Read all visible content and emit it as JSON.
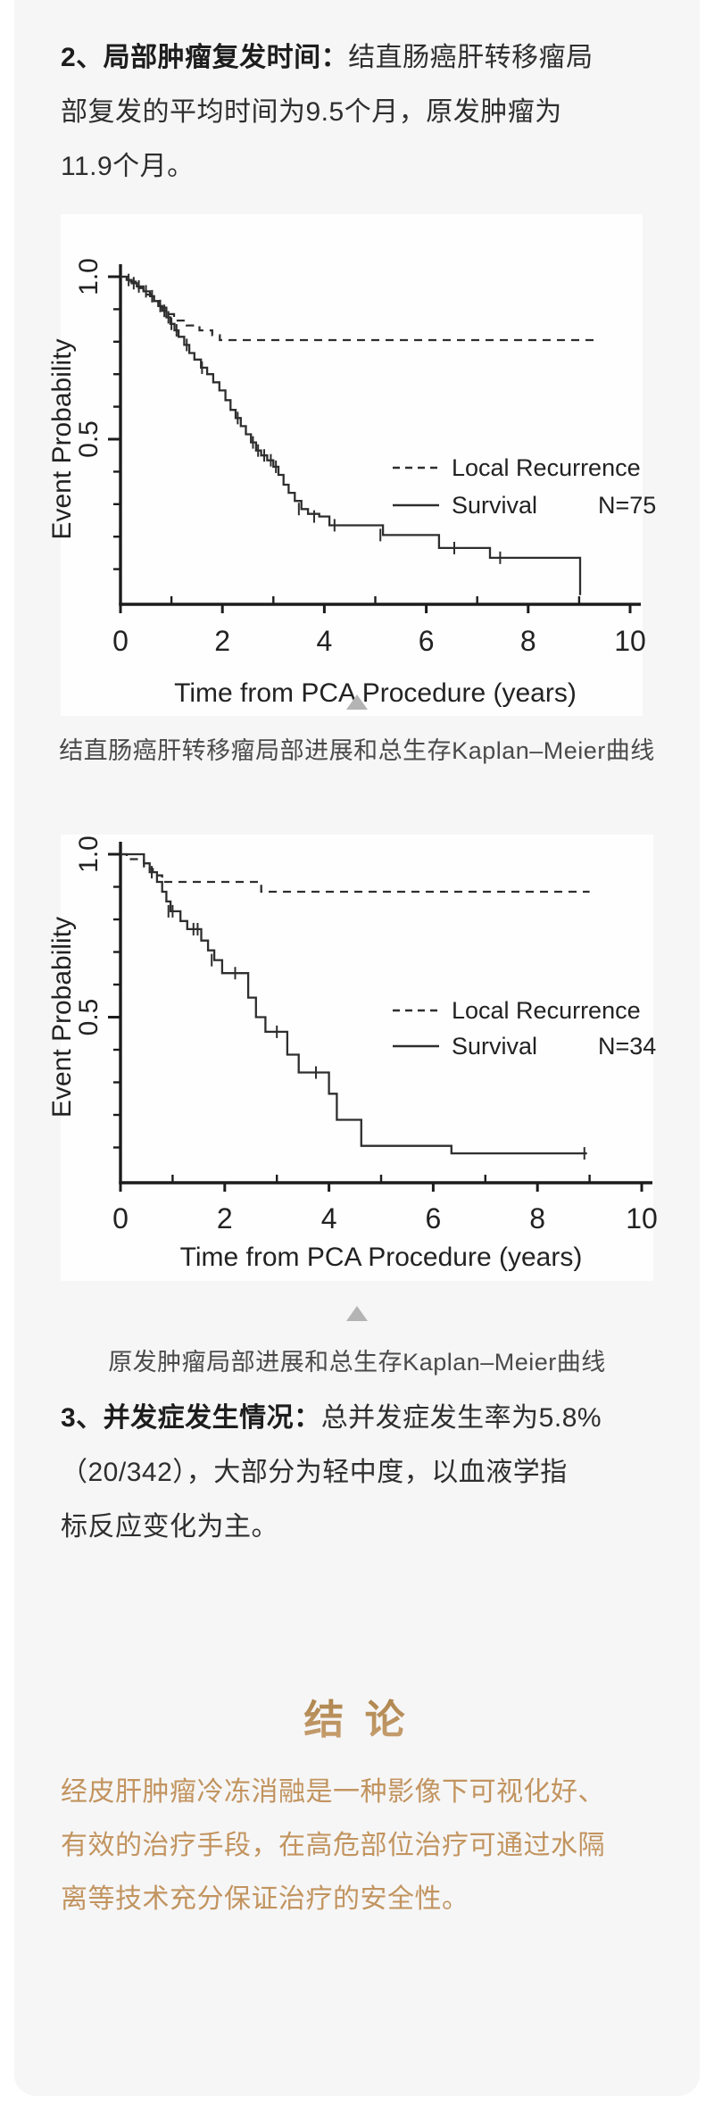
{
  "paras": {
    "p2": {
      "lines": [
        [
          {
            "t": "2、局部肿瘤复发时间：",
            "b": 1
          },
          {
            "t": "结直肠癌肝转移瘤局",
            "b": 0
          }
        ],
        [
          {
            "t": "部复发的平均时间为9.5个月，原发肿瘤为",
            "b": 0
          }
        ],
        [
          {
            "t": "11.9个月。",
            "b": 0
          }
        ]
      ]
    },
    "p3": {
      "lines": [
        [
          {
            "t": "3、并发症发生情况：",
            "b": 1
          },
          {
            "t": "总并发症发生率为5.8%",
            "b": 0
          }
        ],
        [
          {
            "t": "（20/342），大部分为轻中度，以血液学指",
            "b": 0
          }
        ],
        [
          {
            "t": "标反应变化为主。",
            "b": 0
          }
        ]
      ]
    }
  },
  "figures": [
    {
      "caption": "结直肠癌肝转移瘤局部进展和总生存Kaplan–Meier曲线"
    },
    {
      "caption": "原发肿瘤局部进展和总生存Kaplan–Meier曲线"
    }
  ],
  "conclusion": {
    "title": "结 论",
    "lines": [
      "经皮肝肿瘤冷冻消融是一种影像下可视化好、",
      "有效的治疗手段，在高危部位治疗可通过水隔",
      "离等技术充分保证治疗的安全性。"
    ],
    "accent_color": "#b08a52",
    "body_color": "#c2945f"
  },
  "chart_data": [
    {
      "type": "line",
      "subtype": "kaplan-meier-step",
      "xlabel": "Time from PCA Procedure (years)",
      "ylabel": "Event Probability",
      "xlim": [
        0,
        10
      ],
      "ylim": [
        0,
        1.0
      ],
      "x_ticks_major": [
        0,
        2,
        4,
        6,
        8,
        10
      ],
      "x_ticks_minor": [
        1,
        3,
        5,
        7,
        9
      ],
      "y_ticks_labeled": [
        {
          "v": 1.0,
          "label": "1.0"
        },
        {
          "v": 0.5,
          "label": "0.5"
        }
      ],
      "y_ticks_minor": [
        0.9,
        0.8,
        0.7,
        0.6,
        0.4,
        0.3,
        0.2,
        0.1
      ],
      "grid": false,
      "legend_position": "center-right",
      "legend": [
        {
          "name": "Local Recurrence",
          "style": "dashed",
          "n_label": ""
        },
        {
          "name": "Survival",
          "style": "solid",
          "n_label": "N=75"
        }
      ],
      "series": [
        {
          "name": "Local Recurrence",
          "style": "dashed",
          "start": [
            0,
            1.0
          ],
          "steps": [
            [
              0.15,
              0.985
            ],
            [
              0.3,
              0.965
            ],
            [
              0.45,
              0.945
            ],
            [
              0.6,
              0.925
            ],
            [
              0.75,
              0.905
            ],
            [
              0.9,
              0.885
            ],
            [
              1.05,
              0.865
            ],
            [
              1.3,
              0.85
            ],
            [
              1.55,
              0.835
            ],
            [
              1.8,
              0.82
            ],
            [
              1.95,
              0.805
            ]
          ],
          "end_x": 9.3,
          "censors": []
        },
        {
          "name": "Survival",
          "style": "solid",
          "start": [
            0,
            1.0
          ],
          "steps": [
            [
              0.12,
              0.99
            ],
            [
              0.22,
              0.98
            ],
            [
              0.32,
              0.97
            ],
            [
              0.45,
              0.955
            ],
            [
              0.58,
              0.94
            ],
            [
              0.66,
              0.925
            ],
            [
              0.74,
              0.91
            ],
            [
              0.82,
              0.895
            ],
            [
              0.9,
              0.875
            ],
            [
              0.98,
              0.855
            ],
            [
              1.06,
              0.835
            ],
            [
              1.14,
              0.815
            ],
            [
              1.25,
              0.79
            ],
            [
              1.35,
              0.765
            ],
            [
              1.45,
              0.745
            ],
            [
              1.58,
              0.72
            ],
            [
              1.7,
              0.7
            ],
            [
              1.82,
              0.675
            ],
            [
              1.94,
              0.65
            ],
            [
              2.06,
              0.62
            ],
            [
              2.16,
              0.59
            ],
            [
              2.26,
              0.565
            ],
            [
              2.36,
              0.54
            ],
            [
              2.46,
              0.515
            ],
            [
              2.56,
              0.49
            ],
            [
              2.66,
              0.465
            ],
            [
              2.76,
              0.45
            ],
            [
              2.88,
              0.435
            ],
            [
              3.0,
              0.415
            ],
            [
              3.1,
              0.39
            ],
            [
              3.2,
              0.36
            ],
            [
              3.3,
              0.335
            ],
            [
              3.42,
              0.31
            ],
            [
              3.55,
              0.285
            ],
            [
              3.68,
              0.27
            ],
            [
              3.9,
              0.262
            ],
            [
              4.1,
              0.235
            ],
            [
              5.15,
              0.205
            ],
            [
              6.25,
              0.165
            ],
            [
              7.25,
              0.135
            ],
            [
              9.02,
              0.135
            ]
          ],
          "drop_to": 0.02,
          "censors": [
            [
              0.16,
              0.99
            ],
            [
              0.26,
              0.98
            ],
            [
              0.36,
              0.97
            ],
            [
              0.5,
              0.955
            ],
            [
              0.62,
              0.94
            ],
            [
              0.78,
              0.91
            ],
            [
              0.86,
              0.895
            ],
            [
              0.94,
              0.875
            ],
            [
              1.0,
              0.855
            ],
            [
              1.1,
              0.835
            ],
            [
              1.3,
              0.79
            ],
            [
              1.6,
              0.72
            ],
            [
              2.3,
              0.565
            ],
            [
              2.6,
              0.49
            ],
            [
              2.7,
              0.465
            ],
            [
              2.82,
              0.45
            ],
            [
              2.95,
              0.435
            ],
            [
              3.05,
              0.415
            ],
            [
              3.5,
              0.285
            ],
            [
              3.8,
              0.262
            ],
            [
              4.2,
              0.235
            ],
            [
              5.1,
              0.205
            ],
            [
              6.55,
              0.165
            ],
            [
              7.45,
              0.135
            ]
          ]
        }
      ]
    },
    {
      "type": "line",
      "subtype": "kaplan-meier-step",
      "xlabel": "Time from PCA Procedure (years)",
      "ylabel": "Event Probability",
      "xlim": [
        0,
        10
      ],
      "ylim": [
        0,
        1.0
      ],
      "x_ticks_major": [
        0,
        2,
        4,
        6,
        8,
        10
      ],
      "x_ticks_minor": [
        1,
        3,
        5,
        7,
        9
      ],
      "y_ticks_labeled": [
        {
          "v": 1.0,
          "label": "1.0"
        },
        {
          "v": 0.5,
          "label": "0.5"
        }
      ],
      "y_ticks_minor": [
        0.9,
        0.8,
        0.7,
        0.6,
        0.4,
        0.3,
        0.2,
        0.1
      ],
      "grid": false,
      "legend_position": "center-right",
      "legend": [
        {
          "name": "Local Recurrence",
          "style": "dashed",
          "n_label": ""
        },
        {
          "name": "Survival",
          "style": "solid",
          "n_label": "N=34"
        }
      ],
      "series": [
        {
          "name": "Local Recurrence",
          "style": "dashed",
          "start": [
            0,
            1.0
          ],
          "steps": [
            [
              0.12,
              0.985
            ],
            [
              0.45,
              0.955
            ],
            [
              0.62,
              0.935
            ],
            [
              0.8,
              0.915
            ],
            [
              2.7,
              0.885
            ]
          ],
          "end_x": 9.0,
          "censors": []
        },
        {
          "name": "Survival",
          "style": "solid",
          "start": [
            0,
            1.0
          ],
          "steps": [
            [
              0.45,
              0.972
            ],
            [
              0.56,
              0.945
            ],
            [
              0.7,
              0.915
            ],
            [
              0.8,
              0.885
            ],
            [
              0.88,
              0.855
            ],
            [
              0.96,
              0.825
            ],
            [
              1.15,
              0.795
            ],
            [
              1.28,
              0.77
            ],
            [
              1.55,
              0.735
            ],
            [
              1.68,
              0.705
            ],
            [
              1.8,
              0.675
            ],
            [
              1.95,
              0.635
            ],
            [
              2.45,
              0.56
            ],
            [
              2.6,
              0.5
            ],
            [
              2.78,
              0.455
            ],
            [
              3.2,
              0.385
            ],
            [
              3.42,
              0.33
            ],
            [
              4.0,
              0.265
            ],
            [
              4.15,
              0.185
            ],
            [
              4.62,
              0.105
            ],
            [
              6.35,
              0.082
            ],
            [
              8.95,
              0.082
            ]
          ],
          "censors": [
            [
              0.6,
              0.945
            ],
            [
              0.92,
              0.825
            ],
            [
              1.0,
              0.825
            ],
            [
              1.4,
              0.77
            ],
            [
              1.48,
              0.77
            ],
            [
              1.75,
              0.675
            ],
            [
              2.2,
              0.635
            ],
            [
              3.0,
              0.455
            ],
            [
              3.75,
              0.33
            ],
            [
              8.9,
              0.082
            ]
          ]
        }
      ]
    }
  ]
}
